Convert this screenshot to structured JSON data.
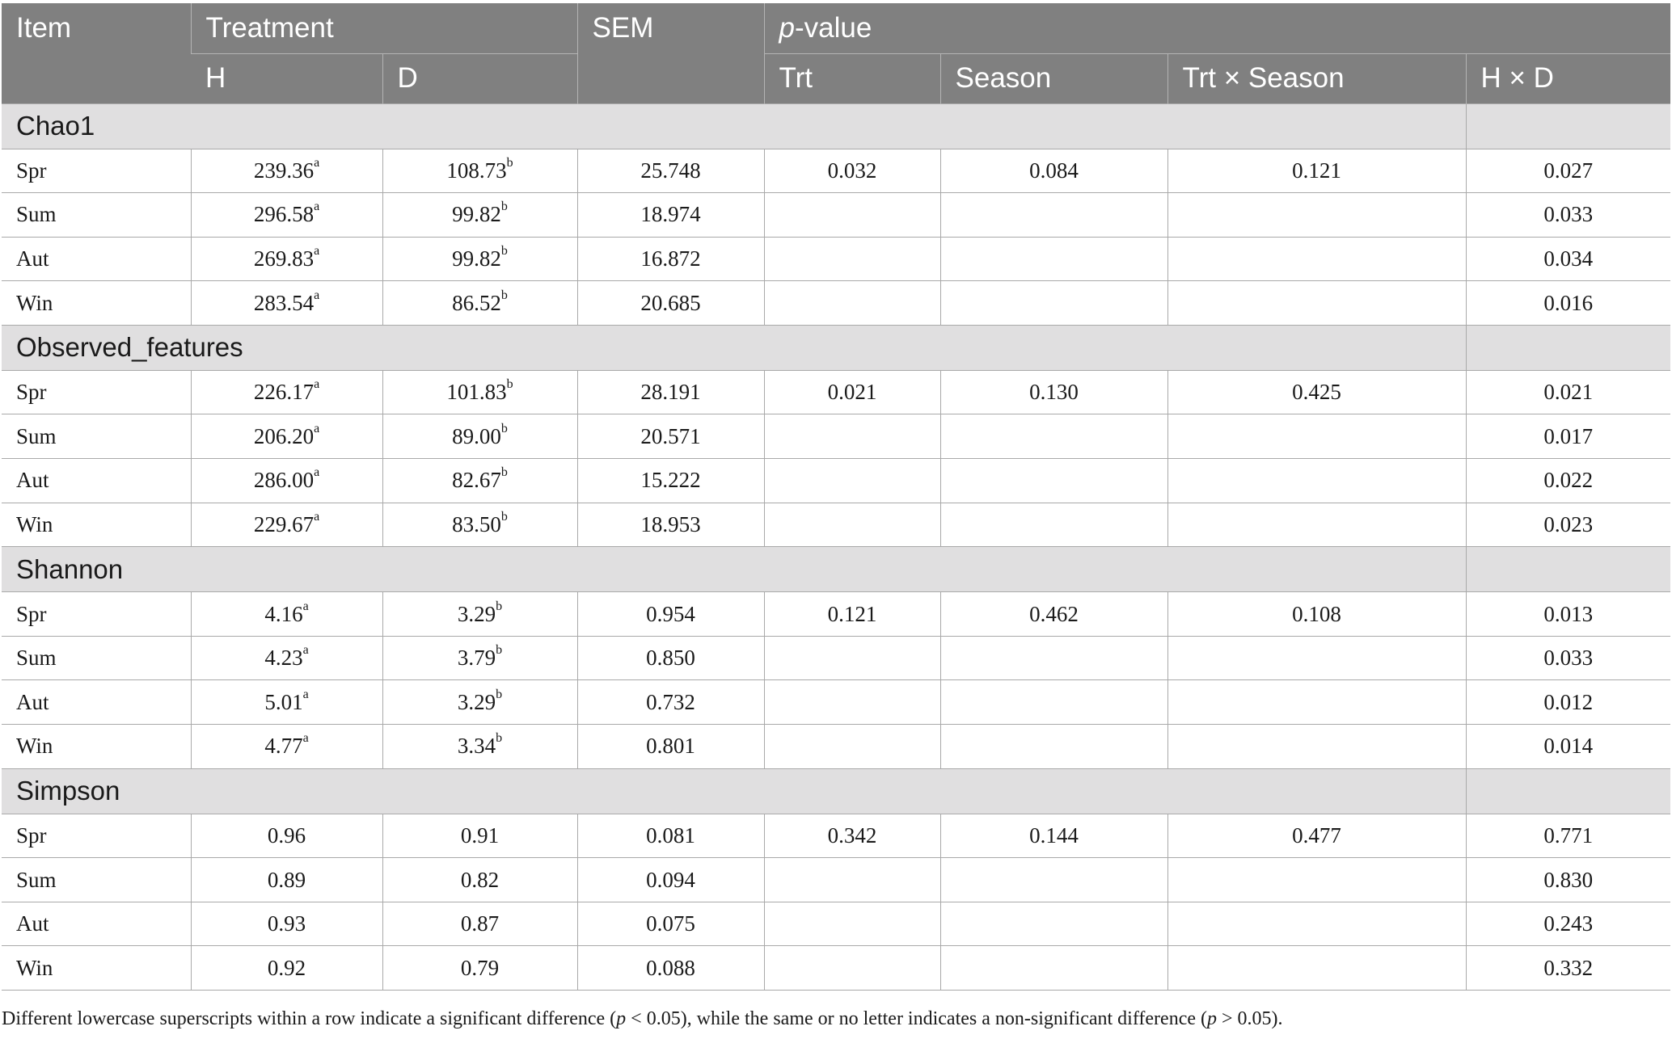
{
  "header": {
    "item": "Item",
    "treatment": "Treatment",
    "sem": "SEM",
    "pvalue_p": "p",
    "pvalue_rest": "-value",
    "h": "H",
    "d": "D",
    "trt": "Trt",
    "season": "Season",
    "trt_season": "Trt × Season",
    "hxd": "H × D"
  },
  "groups": [
    {
      "name": "Chao1",
      "rows": [
        {
          "item": "Spr",
          "h": "239.36",
          "h_sup": "a",
          "d": "108.73",
          "d_sup": "b",
          "sem": "25.748",
          "trt": "0.032",
          "season": "0.084",
          "trt_season": "0.121",
          "hxd": "0.027"
        },
        {
          "item": "Sum",
          "h": "296.58",
          "h_sup": "a",
          "d": "99.82",
          "d_sup": "b",
          "sem": "18.974",
          "trt": "",
          "season": "",
          "trt_season": "",
          "hxd": "0.033"
        },
        {
          "item": "Aut",
          "h": "269.83",
          "h_sup": "a",
          "d": "99.82",
          "d_sup": "b",
          "sem": "16.872",
          "trt": "",
          "season": "",
          "trt_season": "",
          "hxd": "0.034"
        },
        {
          "item": "Win",
          "h": "283.54",
          "h_sup": "a",
          "d": "86.52",
          "d_sup": "b",
          "sem": "20.685",
          "trt": "",
          "season": "",
          "trt_season": "",
          "hxd": "0.016"
        }
      ]
    },
    {
      "name": "Observed_features",
      "rows": [
        {
          "item": "Spr",
          "h": "226.17",
          "h_sup": "a",
          "d": "101.83",
          "d_sup": "b",
          "sem": "28.191",
          "trt": "0.021",
          "season": "0.130",
          "trt_season": "0.425",
          "hxd": "0.021"
        },
        {
          "item": "Sum",
          "h": "206.20",
          "h_sup": "a",
          "d": "89.00",
          "d_sup": "b",
          "sem": "20.571",
          "trt": "",
          "season": "",
          "trt_season": "",
          "hxd": "0.017"
        },
        {
          "item": "Aut",
          "h": "286.00",
          "h_sup": "a",
          "d": "82.67",
          "d_sup": "b",
          "sem": "15.222",
          "trt": "",
          "season": "",
          "trt_season": "",
          "hxd": "0.022"
        },
        {
          "item": "Win",
          "h": "229.67",
          "h_sup": "a",
          "d": "83.50",
          "d_sup": "b",
          "sem": "18.953",
          "trt": "",
          "season": "",
          "trt_season": "",
          "hxd": "0.023"
        }
      ]
    },
    {
      "name": "Shannon",
      "rows": [
        {
          "item": "Spr",
          "h": "4.16",
          "h_sup": "a",
          "d": "3.29",
          "d_sup": "b",
          "sem": "0.954",
          "trt": "0.121",
          "season": "0.462",
          "trt_season": "0.108",
          "hxd": "0.013"
        },
        {
          "item": "Sum",
          "h": "4.23",
          "h_sup": "a",
          "d": "3.79",
          "d_sup": "b",
          "sem": "0.850",
          "trt": "",
          "season": "",
          "trt_season": "",
          "hxd": "0.033"
        },
        {
          "item": "Aut",
          "h": "5.01",
          "h_sup": "a",
          "d": "3.29",
          "d_sup": "b",
          "sem": "0.732",
          "trt": "",
          "season": "",
          "trt_season": "",
          "hxd": "0.012"
        },
        {
          "item": "Win",
          "h": "4.77",
          "h_sup": "a",
          "d": "3.34",
          "d_sup": "b",
          "sem": "0.801",
          "trt": "",
          "season": "",
          "trt_season": "",
          "hxd": "0.014"
        }
      ]
    },
    {
      "name": "Simpson",
      "rows": [
        {
          "item": "Spr",
          "h": "0.96",
          "h_sup": "",
          "d": "0.91",
          "d_sup": "",
          "sem": "0.081",
          "trt": "0.342",
          "season": "0.144",
          "trt_season": "0.477",
          "hxd": "0.771"
        },
        {
          "item": "Sum",
          "h": "0.89",
          "h_sup": "",
          "d": "0.82",
          "d_sup": "",
          "sem": "0.094",
          "trt": "",
          "season": "",
          "trt_season": "",
          "hxd": "0.830"
        },
        {
          "item": "Aut",
          "h": "0.93",
          "h_sup": "",
          "d": "0.87",
          "d_sup": "",
          "sem": "0.075",
          "trt": "",
          "season": "",
          "trt_season": "",
          "hxd": "0.243"
        },
        {
          "item": "Win",
          "h": "0.92",
          "h_sup": "",
          "d": "0.79",
          "d_sup": "",
          "sem": "0.088",
          "trt": "",
          "season": "",
          "trt_season": "",
          "hxd": "0.332"
        }
      ]
    }
  ],
  "footnote": {
    "part1": "Different lowercase superscripts within a row indicate a significant difference (",
    "p1": "p",
    "part2": " < 0.05), while the same or no letter indicates a non-significant difference (",
    "p2": "p",
    "part3": " > 0.05)."
  }
}
